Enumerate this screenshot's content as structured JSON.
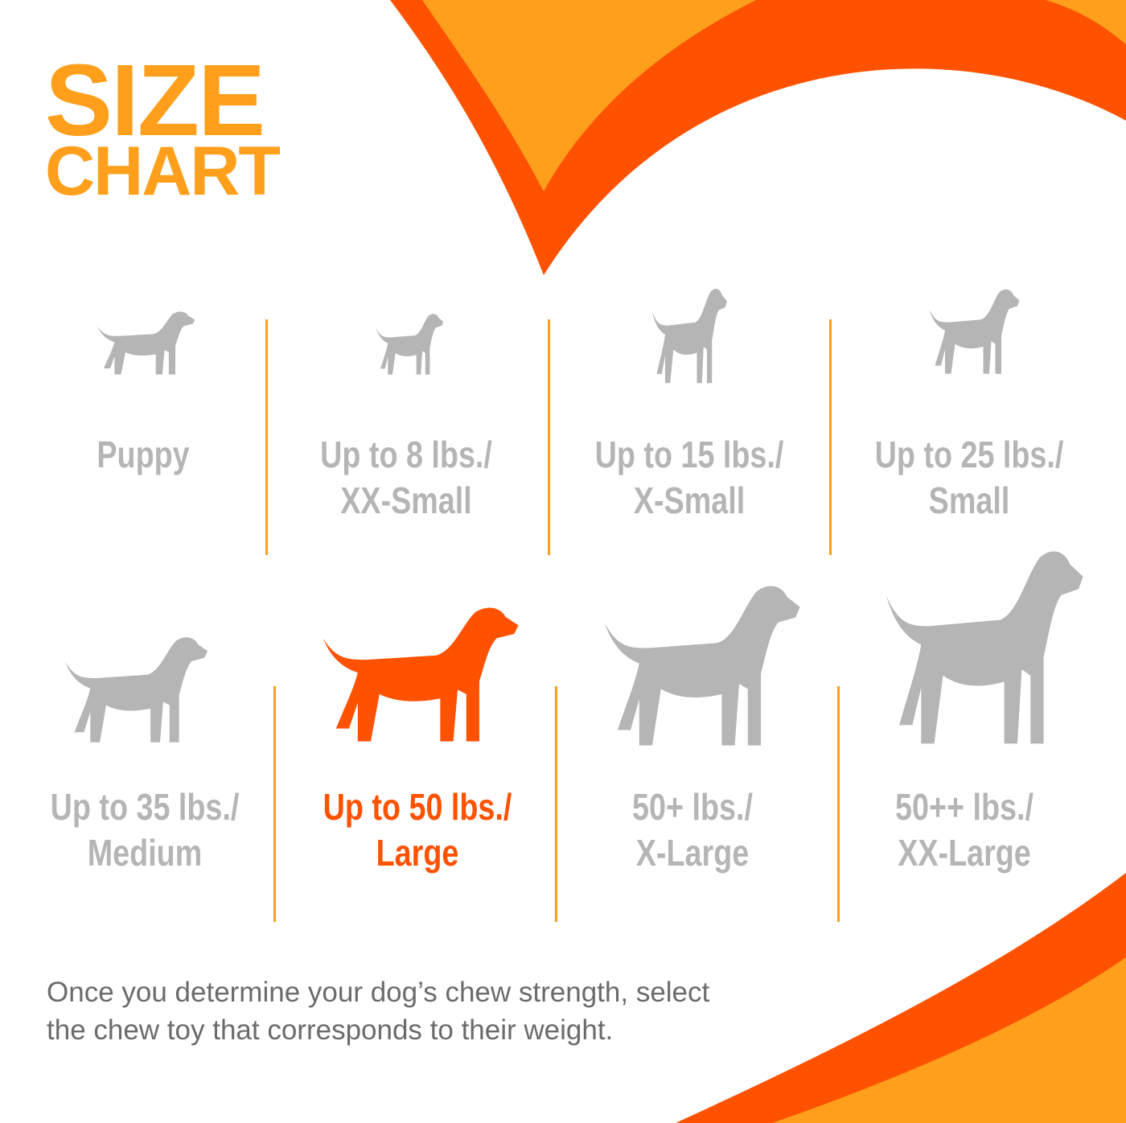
{
  "title": {
    "line1": "SIZE",
    "line2": "CHART"
  },
  "colors": {
    "orange": "#FF9F1C",
    "red_orange": "#FF5200",
    "gray": "#b5b5b5",
    "text_gray": "#6b6b6b"
  },
  "sizes": [
    {
      "line1": "Puppy",
      "line2": "",
      "icon": "puppy-silhouette-icon",
      "selected": false
    },
    {
      "line1": "Up to 8 lbs./",
      "line2": "XX-Small",
      "icon": "chihuahua-silhouette-icon",
      "selected": false
    },
    {
      "line1": "Up to 15 lbs./",
      "line2": "X-Small",
      "icon": "pinscher-silhouette-icon",
      "selected": false
    },
    {
      "line1": "Up to 25 lbs./",
      "line2": "Small",
      "icon": "terrier-silhouette-icon",
      "selected": false
    },
    {
      "line1": "Up to 35 lbs./",
      "line2": "Medium",
      "icon": "beagle-silhouette-icon",
      "selected": false
    },
    {
      "line1": "Up to 50 lbs./",
      "line2": "Large",
      "icon": "labrador-silhouette-icon",
      "selected": true
    },
    {
      "line1": "50+ lbs./",
      "line2": "X-Large",
      "icon": "shepherd-silhouette-icon",
      "selected": false
    },
    {
      "line1": "50++ lbs./",
      "line2": "XX-Large",
      "icon": "great-dane-silhouette-icon",
      "selected": false
    }
  ],
  "footer": {
    "line1": "Once you determine your dog’s chew strength, select",
    "line2": "the chew toy that corresponds to their weight."
  }
}
